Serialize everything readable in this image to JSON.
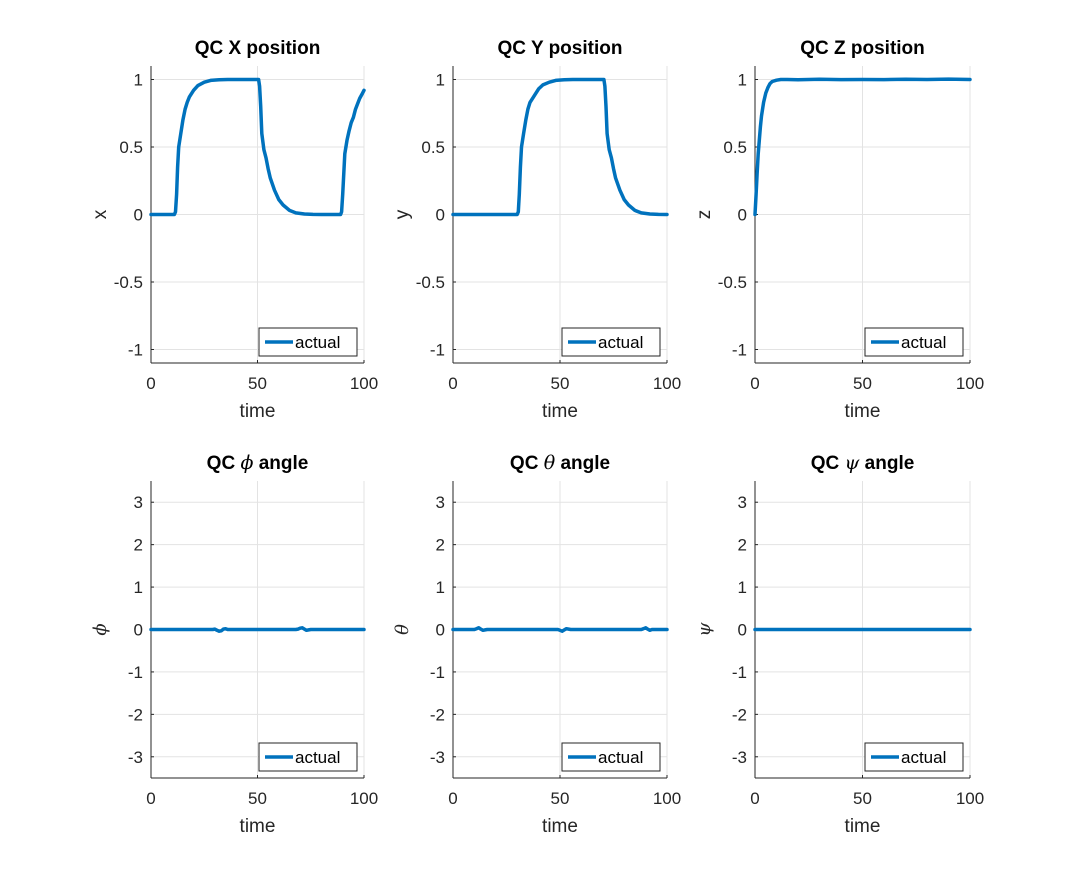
{
  "chart_data": [
    {
      "type": "line",
      "title": "QC X position",
      "xlabel": "time",
      "ylabel": "x",
      "ylabel_math": false,
      "xlim": [
        0,
        100
      ],
      "ylim": [
        -1.1,
        1.1
      ],
      "xticks": [
        0,
        50,
        100
      ],
      "xtick_labels": [
        "0",
        "50",
        "100"
      ],
      "yticks": [
        -1,
        -0.5,
        0,
        0.5,
        1
      ],
      "ytick_labels": [
        "-1",
        "-0.5",
        "0",
        "0.5",
        "1"
      ],
      "grid": true,
      "legend_position": "bottom-right",
      "series": [
        {
          "name": "actual",
          "color": "#0072BD",
          "x": [
            0,
            11,
            11.5,
            12,
            12.5,
            13,
            14,
            15,
            16,
            17,
            18,
            20,
            22,
            25,
            28,
            32,
            36,
            40,
            45,
            49,
            50.5,
            51,
            51.5,
            52,
            53,
            54,
            55,
            56,
            58,
            60,
            62,
            65,
            68,
            72,
            76,
            80,
            85,
            89,
            89.5,
            90,
            91,
            92,
            93,
            94,
            95,
            96,
            97,
            98,
            99,
            100
          ],
          "y": [
            0,
            0,
            0.02,
            0.15,
            0.35,
            0.5,
            0.6,
            0.7,
            0.78,
            0.83,
            0.87,
            0.92,
            0.955,
            0.98,
            0.993,
            0.998,
            1,
            1,
            1,
            1,
            1,
            0.95,
            0.8,
            0.6,
            0.48,
            0.42,
            0.34,
            0.27,
            0.18,
            0.11,
            0.07,
            0.03,
            0.012,
            0.004,
            0.001,
            0,
            0,
            0,
            0.02,
            0.15,
            0.45,
            0.55,
            0.62,
            0.68,
            0.72,
            0.78,
            0.82,
            0.86,
            0.89,
            0.92
          ]
        }
      ]
    },
    {
      "type": "line",
      "title": "QC Y position",
      "xlabel": "time",
      "ylabel": "y",
      "ylabel_math": false,
      "xlim": [
        0,
        100
      ],
      "ylim": [
        -1.1,
        1.1
      ],
      "xticks": [
        0,
        50,
        100
      ],
      "xtick_labels": [
        "0",
        "50",
        "100"
      ],
      "yticks": [
        -1,
        -0.5,
        0,
        0.5,
        1
      ],
      "ytick_labels": [
        "-1",
        "-0.5",
        "0",
        "0.5",
        "1"
      ],
      "grid": true,
      "legend_position": "bottom-right",
      "series": [
        {
          "name": "actual",
          "color": "#0072BD",
          "x": [
            0,
            30,
            30.5,
            31,
            31.5,
            32,
            33,
            34,
            35,
            36,
            38,
            40,
            42,
            45,
            48,
            52,
            56,
            60,
            65,
            69,
            70.5,
            71,
            71.5,
            72,
            73,
            74,
            75,
            76,
            78,
            80,
            82,
            85,
            88,
            92,
            96,
            100
          ],
          "y": [
            0,
            0,
            0.02,
            0.15,
            0.35,
            0.5,
            0.6,
            0.7,
            0.78,
            0.83,
            0.88,
            0.93,
            0.96,
            0.98,
            0.993,
            0.998,
            1,
            1,
            1,
            1,
            1,
            0.95,
            0.8,
            0.6,
            0.48,
            0.42,
            0.34,
            0.27,
            0.18,
            0.11,
            0.07,
            0.03,
            0.012,
            0.004,
            0.001,
            0
          ]
        }
      ]
    },
    {
      "type": "line",
      "title": "QC Z position",
      "xlabel": "time",
      "ylabel": "z",
      "ylabel_math": false,
      "xlim": [
        0,
        100
      ],
      "ylim": [
        -1.1,
        1.1
      ],
      "xticks": [
        0,
        50,
        100
      ],
      "xtick_labels": [
        "0",
        "50",
        "100"
      ],
      "yticks": [
        -1,
        -0.5,
        0,
        0.5,
        1
      ],
      "ytick_labels": [
        "-1",
        "-0.5",
        "0",
        "0.5",
        "1"
      ],
      "grid": true,
      "legend_position": "bottom-right",
      "series": [
        {
          "name": "actual",
          "color": "#0072BD",
          "x": [
            0,
            0.5,
            1,
            1.5,
            2,
            2.5,
            3,
            4,
            5,
            6,
            7,
            8,
            10,
            12,
            15,
            20,
            30,
            40,
            50,
            60,
            70,
            80,
            90,
            100
          ],
          "y": [
            0,
            0.15,
            0.3,
            0.45,
            0.55,
            0.65,
            0.73,
            0.83,
            0.9,
            0.94,
            0.97,
            0.985,
            0.995,
            1,
            1,
            0.998,
            1.002,
            0.999,
            1,
            0.999,
            1.002,
            1,
            1.003,
            1
          ]
        }
      ]
    },
    {
      "type": "line",
      "title_prefix": "QC",
      "title_symbol": "ϕ",
      "title_suffix": "angle",
      "xlabel": "time",
      "ylabel": "ϕ",
      "ylabel_math": true,
      "xlim": [
        0,
        100
      ],
      "ylim": [
        -3.5,
        3.5
      ],
      "xticks": [
        0,
        50,
        100
      ],
      "xtick_labels": [
        "0",
        "50",
        "100"
      ],
      "yticks": [
        -3,
        -2,
        -1,
        0,
        1,
        2,
        3
      ],
      "ytick_labels": [
        "-3",
        "-2",
        "-1",
        "0",
        "1",
        "2",
        "3"
      ],
      "grid": true,
      "legend_position": "bottom-right",
      "series": [
        {
          "name": "actual",
          "color": "#0072BD",
          "x": [
            0,
            29,
            30,
            31,
            32,
            33,
            34,
            35,
            36,
            38,
            40,
            68,
            69,
            70,
            71,
            72,
            73,
            74,
            75,
            77,
            80,
            100
          ],
          "y": [
            0,
            0,
            0.01,
            -0.02,
            -0.04,
            -0.03,
            0.01,
            0.02,
            0,
            0,
            0,
            0,
            0.01,
            0.03,
            0.04,
            0.01,
            -0.02,
            -0.01,
            0,
            0,
            0,
            0
          ]
        }
      ]
    },
    {
      "type": "line",
      "title_prefix": "QC",
      "title_symbol": "θ",
      "title_suffix": "angle",
      "xlabel": "time",
      "ylabel": "θ",
      "ylabel_math": true,
      "xlim": [
        0,
        100
      ],
      "ylim": [
        -3.5,
        3.5
      ],
      "xticks": [
        0,
        50,
        100
      ],
      "xtick_labels": [
        "0",
        "50",
        "100"
      ],
      "yticks": [
        -3,
        -2,
        -1,
        0,
        1,
        2,
        3
      ],
      "ytick_labels": [
        "-3",
        "-2",
        "-1",
        "0",
        "1",
        "2",
        "3"
      ],
      "grid": true,
      "legend_position": "bottom-right",
      "series": [
        {
          "name": "actual",
          "color": "#0072BD",
          "x": [
            0,
            10,
            11,
            12,
            13,
            14,
            15,
            16,
            18,
            49,
            50,
            51,
            52,
            53,
            54,
            55,
            57,
            88,
            89,
            90,
            91,
            92,
            93,
            95,
            100
          ],
          "y": [
            0,
            0,
            0.02,
            0.04,
            0.01,
            -0.02,
            -0.01,
            0,
            0,
            0,
            -0.02,
            -0.04,
            -0.01,
            0.02,
            0.01,
            0,
            0,
            0,
            0.02,
            0.04,
            0.01,
            -0.02,
            0,
            0,
            0
          ]
        }
      ]
    },
    {
      "type": "line",
      "title_prefix": "QC",
      "title_symbol": "ψ",
      "title_suffix": "angle",
      "xlabel": "time",
      "ylabel": "ψ",
      "ylabel_math": true,
      "xlim": [
        0,
        100
      ],
      "ylim": [
        -3.5,
        3.5
      ],
      "xticks": [
        0,
        50,
        100
      ],
      "xtick_labels": [
        "0",
        "50",
        "100"
      ],
      "yticks": [
        -3,
        -2,
        -1,
        0,
        1,
        2,
        3
      ],
      "ytick_labels": [
        "-3",
        "-2",
        "-1",
        "0",
        "1",
        "2",
        "3"
      ],
      "grid": true,
      "legend_position": "bottom-right",
      "series": [
        {
          "name": "actual",
          "color": "#0072BD",
          "x": [
            0,
            100
          ],
          "y": [
            0,
            0
          ]
        }
      ]
    }
  ]
}
